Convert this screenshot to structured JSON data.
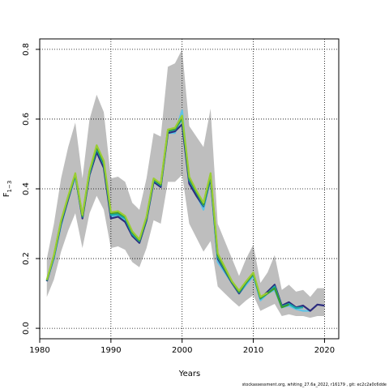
{
  "chart_data": {
    "type": "line",
    "title": "",
    "xlabel": "Years",
    "ylabel_base": "F",
    "ylabel_sub": "1−3",
    "xlim": [
      1980,
      2022
    ],
    "ylim": [
      -0.03,
      0.83
    ],
    "x_ticks": [
      1980,
      1990,
      2000,
      2010,
      2020
    ],
    "x_tick_labels": [
      "1980",
      "1990",
      "2000",
      "2010",
      "2020"
    ],
    "y_ticks": [
      0.0,
      0.2,
      0.4,
      0.6,
      0.8
    ],
    "y_tick_labels": [
      "0.0",
      "0.2",
      "0.4",
      "0.6",
      "0.8"
    ],
    "grid": "dotted",
    "band": {
      "x": [
        1981,
        1982,
        1983,
        1984,
        1985,
        1986,
        1987,
        1988,
        1989,
        1990,
        1991,
        1992,
        1993,
        1994,
        1995,
        1996,
        1997,
        1998,
        1999,
        2000,
        2001,
        2002,
        2003,
        2004,
        2005,
        2006,
        2007,
        2008,
        2009,
        2010,
        2011,
        2012,
        2013,
        2014,
        2015,
        2016,
        2017,
        2018,
        2019,
        2020
      ],
      "upper": [
        0.2,
        0.3,
        0.43,
        0.52,
        0.59,
        0.43,
        0.6,
        0.67,
        0.62,
        0.43,
        0.435,
        0.42,
        0.36,
        0.34,
        0.43,
        0.56,
        0.55,
        0.75,
        0.76,
        0.8,
        0.58,
        0.55,
        0.52,
        0.63,
        0.3,
        0.25,
        0.2,
        0.15,
        0.2,
        0.24,
        0.13,
        0.16,
        0.21,
        0.11,
        0.125,
        0.105,
        0.11,
        0.09,
        0.115,
        0.115
      ],
      "lower": [
        0.09,
        0.14,
        0.22,
        0.28,
        0.33,
        0.23,
        0.33,
        0.38,
        0.34,
        0.23,
        0.235,
        0.225,
        0.19,
        0.175,
        0.23,
        0.31,
        0.3,
        0.42,
        0.42,
        0.44,
        0.3,
        0.26,
        0.22,
        0.25,
        0.12,
        0.1,
        0.08,
        0.062,
        0.08,
        0.095,
        0.05,
        0.06,
        0.07,
        0.035,
        0.04,
        0.035,
        0.035,
        0.03,
        0.035,
        0.035
      ],
      "color": "#bebebe"
    },
    "series": [
      {
        "color": "#5ec3e6",
        "values": [
          0.135,
          0.2,
          0.295,
          0.37,
          0.435,
          0.32,
          0.445,
          0.51,
          0.47,
          0.32,
          0.325,
          0.31,
          0.27,
          0.245,
          0.31,
          0.42,
          0.405,
          0.56,
          0.56,
          0.625,
          0.42,
          0.385,
          0.34,
          0.43,
          0.19,
          0.16,
          0.13,
          0.1,
          0.125,
          0.15,
          0.08,
          0.1,
          0.11,
          0.06,
          0.065,
          0.055,
          0.05,
          0.05,
          null,
          null
        ]
      },
      {
        "color": "#2c2c7e",
        "values": [
          0.135,
          0.205,
          0.3,
          0.37,
          0.44,
          0.315,
          0.44,
          0.505,
          0.46,
          0.315,
          0.32,
          0.305,
          0.265,
          0.245,
          0.31,
          0.42,
          0.405,
          0.56,
          0.565,
          0.585,
          0.415,
          0.38,
          0.35,
          0.43,
          0.2,
          0.165,
          0.13,
          0.1,
          0.13,
          0.155,
          0.085,
          0.105,
          0.125,
          0.065,
          0.075,
          0.06,
          0.065,
          0.05,
          0.068,
          0.065
        ]
      },
      {
        "color": "#19a9a8",
        "values": [
          0.137,
          0.207,
          0.305,
          0.375,
          0.44,
          0.32,
          0.445,
          0.515,
          0.47,
          0.325,
          0.327,
          0.315,
          0.27,
          0.25,
          0.315,
          0.425,
          0.41,
          0.565,
          0.57,
          0.6,
          0.425,
          0.39,
          0.352,
          0.435,
          0.205,
          0.168,
          0.132,
          0.103,
          0.13,
          0.155,
          0.085,
          0.1,
          0.12,
          0.062,
          0.07,
          0.058,
          0.06,
          null,
          null,
          null
        ]
      },
      {
        "color": "#3b9a2e",
        "values": [
          0.138,
          0.208,
          0.307,
          0.377,
          0.442,
          0.322,
          0.45,
          0.52,
          0.475,
          0.33,
          0.332,
          0.32,
          0.275,
          0.252,
          0.318,
          0.428,
          0.412,
          0.567,
          0.572,
          0.605,
          0.43,
          0.392,
          0.355,
          0.44,
          0.21,
          0.17,
          0.133,
          0.105,
          0.132,
          0.157,
          0.087,
          0.1,
          0.115,
          0.06,
          0.068,
          null,
          null,
          null,
          null,
          null
        ]
      },
      {
        "color": "#9acd32",
        "values": [
          0.139,
          0.21,
          0.309,
          0.379,
          0.445,
          0.325,
          0.452,
          0.525,
          0.48,
          0.333,
          0.336,
          0.322,
          0.278,
          0.255,
          0.32,
          0.43,
          0.415,
          0.57,
          0.575,
          0.61,
          0.435,
          0.395,
          0.36,
          0.445,
          0.215,
          0.175,
          0.135,
          0.108,
          0.135,
          0.16,
          0.09,
          0.102,
          null,
          null,
          null,
          null,
          null,
          null,
          null,
          null
        ]
      }
    ]
  },
  "footer": {
    "text": "stockassessment.org, whiting_27.6a_2022, r16179 , git: ec2c2a0c6dde"
  }
}
